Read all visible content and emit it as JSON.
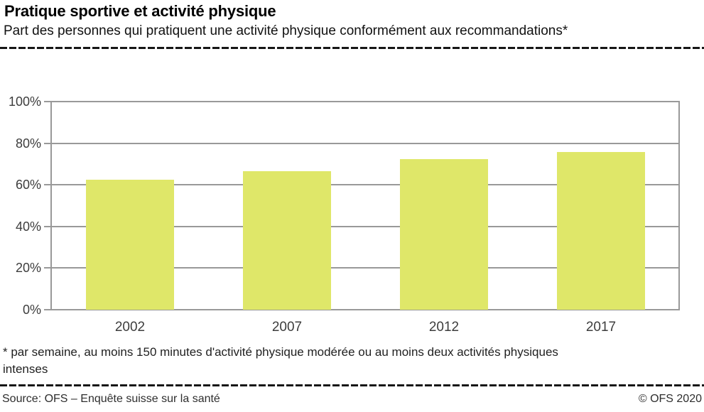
{
  "header": {
    "title": "Pratique sportive et activité physique",
    "subtitle": "Part des personnes qui pratiquent une activité physique conformément aux recommandations*"
  },
  "chart_data": {
    "type": "bar",
    "title": "Pratique sportive et activité physique",
    "subtitle": "Part des personnes qui pratiquent une activité physique conformément aux recommandations*",
    "categories": [
      "2002",
      "2007",
      "2012",
      "2017"
    ],
    "values": [
      62.5,
      66.5,
      72.5,
      75.7
    ],
    "xlabel": "",
    "ylabel": "",
    "ylim": [
      0,
      100
    ],
    "yticks": [
      0,
      20,
      40,
      60,
      80,
      100
    ],
    "ytick_suffix": "%",
    "grid": true,
    "legend_position": "none",
    "bar_color": "#dfe769",
    "grid_color": "#999999",
    "tick_label_color": "#3d3d3d"
  },
  "footnote": {
    "text": "* par semaine, au moins 150 minutes d'activité physique modérée ou au moins deux activités physiques intenses"
  },
  "footer": {
    "source": "Source: OFS – Enquête suisse sur la santé",
    "copyright": "© OFS 2020"
  }
}
